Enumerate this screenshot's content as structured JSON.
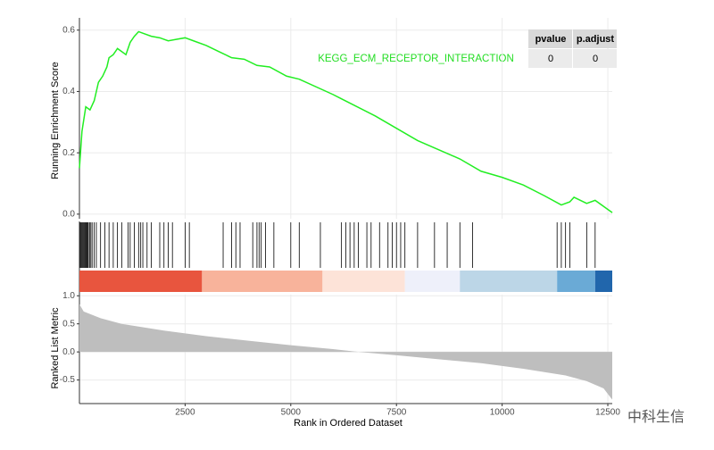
{
  "chart_data": {
    "type": "gsea",
    "annotation": "KEGG_ECM_RECEPTOR_INTERACTION",
    "annotation_color": "#22dd22",
    "x_label": "Rank in Ordered Dataset",
    "xlim": [
      0,
      12605
    ],
    "xticks": [
      2500,
      5000,
      7500,
      10000,
      12500
    ],
    "grid": true,
    "es": {
      "ylabel": "Running Enrichment Score",
      "ylim": [
        -0.015,
        0.64
      ],
      "yticks": [
        {
          "value": 0,
          "label": "0.0"
        },
        0.2,
        0.4,
        0.6
      ],
      "color": "#22ee22",
      "x": [
        0,
        60,
        150,
        250,
        350,
        450,
        550,
        650,
        700,
        800,
        900,
        1000,
        1100,
        1200,
        1300,
        1400,
        1500,
        1700,
        1900,
        2100,
        2300,
        2500,
        2700,
        3000,
        3300,
        3600,
        3900,
        4200,
        4500,
        4900,
        5200,
        6000,
        7000,
        8000,
        9000,
        9500,
        10000,
        10500,
        11000,
        11400,
        11600,
        11700,
        12000,
        12200,
        12605
      ],
      "values": [
        0.15,
        0.27,
        0.35,
        0.34,
        0.37,
        0.43,
        0.45,
        0.48,
        0.51,
        0.52,
        0.54,
        0.53,
        0.52,
        0.56,
        0.58,
        0.595,
        0.59,
        0.58,
        0.575,
        0.565,
        0.57,
        0.575,
        0.565,
        0.55,
        0.53,
        0.51,
        0.505,
        0.485,
        0.48,
        0.45,
        0.44,
        0.39,
        0.32,
        0.24,
        0.18,
        0.14,
        0.12,
        0.095,
        0.06,
        0.03,
        0.04,
        0.055,
        0.035,
        0.045,
        0.005
      ]
    },
    "hits": [
      10,
      30,
      50,
      70,
      90,
      110,
      130,
      150,
      170,
      190,
      210,
      240,
      270,
      300,
      350,
      400,
      500,
      600,
      700,
      800,
      900,
      1000,
      1150,
      1200,
      1300,
      1400,
      1450,
      1500,
      1600,
      1700,
      1900,
      2000,
      2100,
      2200,
      2500,
      2600,
      3400,
      3600,
      3700,
      3800,
      4100,
      4200,
      4250,
      4300,
      4400,
      4600,
      5000,
      5200,
      5700,
      6200,
      6300,
      6400,
      6500,
      6600,
      6800,
      6900,
      7100,
      7300,
      7400,
      7500,
      7600,
      7700,
      8000,
      8400,
      8700,
      9000,
      9300,
      11300,
      11400,
      11500,
      11600,
      12000,
      12200
    ],
    "bands": [
      {
        "start": 0,
        "end": 2900,
        "color": "#e8553e"
      },
      {
        "start": 2900,
        "end": 5750,
        "color": "#f8b39b"
      },
      {
        "start": 5750,
        "end": 7700,
        "color": "#fde3d8"
      },
      {
        "start": 7700,
        "end": 9000,
        "color": "#eef0fa"
      },
      {
        "start": 9000,
        "end": 11300,
        "color": "#bcd6e7"
      },
      {
        "start": 11300,
        "end": 12200,
        "color": "#6aaad6"
      },
      {
        "start": 12200,
        "end": 12605,
        "color": "#2166ac"
      }
    ],
    "metric": {
      "ylabel": "Ranked List Metric",
      "ylim": [
        -0.92,
        1.02
      ],
      "yticks": [
        -0.5,
        {
          "value": 0,
          "label": "0.0"
        },
        0.5,
        {
          "value": 1,
          "label": "1.0"
        }
      ],
      "color": "#bebebe",
      "x": [
        0,
        100,
        500,
        1000,
        2000,
        3000,
        4000,
        5000,
        6000,
        6600,
        7500,
        8500,
        9500,
        10500,
        11500,
        12000,
        12400,
        12605
      ],
      "values": [
        0.85,
        0.72,
        0.6,
        0.5,
        0.38,
        0.28,
        0.2,
        0.12,
        0.05,
        0,
        -0.06,
        -0.13,
        -0.2,
        -0.3,
        -0.42,
        -0.52,
        -0.65,
        -0.85
      ]
    },
    "table": {
      "columns": [
        "pvalue",
        "p.adjust"
      ],
      "rows": [
        [
          "0",
          "0"
        ]
      ]
    }
  },
  "watermark": "中科生信"
}
